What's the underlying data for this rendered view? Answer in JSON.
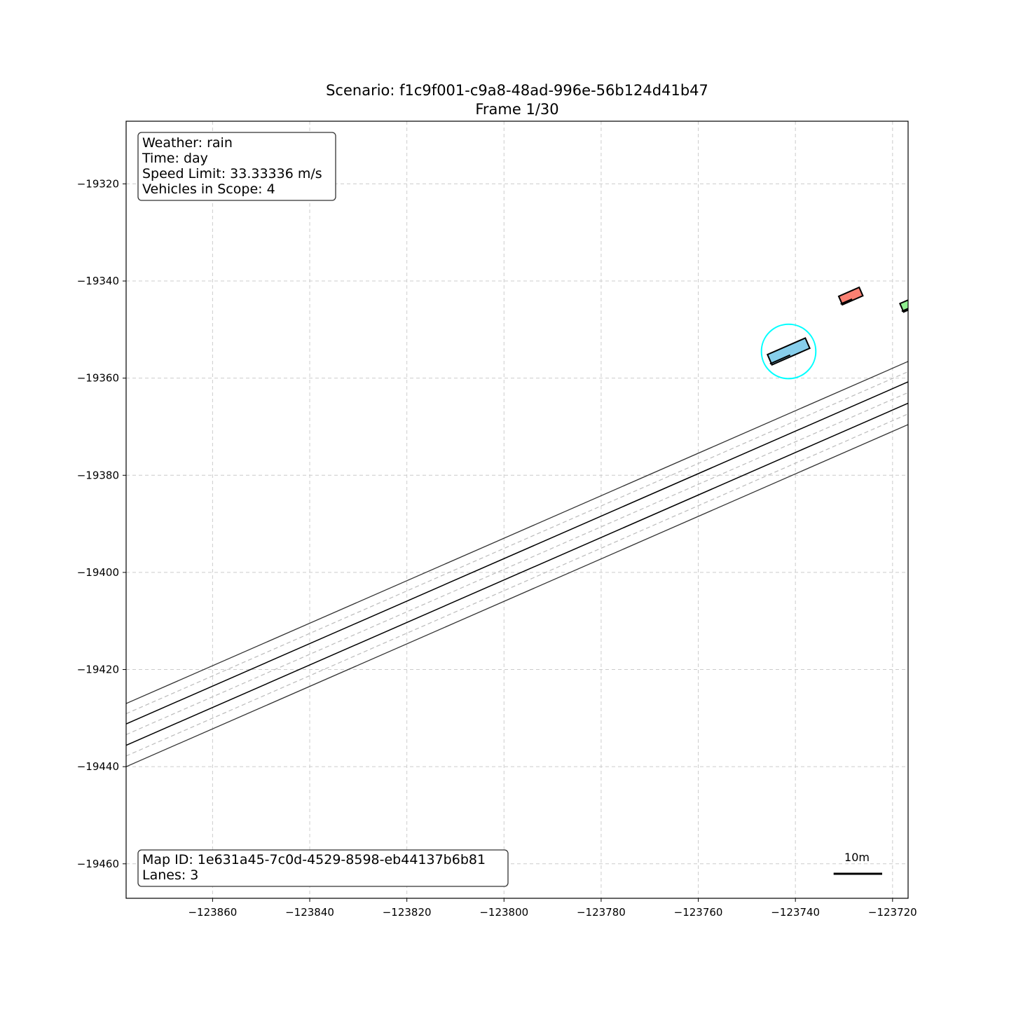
{
  "title": {
    "line1": "Scenario: f1c9f001-c9a8-48ad-996e-56b124d41b47",
    "line2": "Frame 1/30"
  },
  "info_box": {
    "weather": "Weather: rain",
    "time": "Time: day",
    "speed_limit": "Speed Limit: 33.33336 m/s",
    "vehicles": "Vehicles in Scope: 4"
  },
  "map_box": {
    "map_id": "Map ID: 1e631a45-7c0d-4529-8598-eb44137b6b81",
    "lanes": "Lanes: 3"
  },
  "scale_bar": {
    "label": "10m",
    "length_m": 10
  },
  "axes": {
    "x_ticks": [
      -123860,
      -123840,
      -123820,
      -123800,
      -123780,
      -123760,
      -123740,
      -123720
    ],
    "y_ticks": [
      -19320,
      -19340,
      -19360,
      -19380,
      -19400,
      -19420,
      -19440,
      -19460
    ],
    "x_tick_labels": [
      "−123860",
      "−123840",
      "−123820",
      "−123800",
      "−123780",
      "−123760",
      "−123740",
      "−123720"
    ],
    "y_tick_labels": [
      "−19320",
      "−19340",
      "−19360",
      "−19380",
      "−19400",
      "−19420",
      "−19440",
      "−19460"
    ],
    "xlim": [
      -123877.8,
      -123716.8
    ],
    "ylim": [
      -19467.1,
      -19307.1
    ],
    "grid": true
  },
  "road": {
    "slope": 0.4375,
    "edges": [
      {
        "kind": "edge",
        "y_at_xmin": -19427.0
      },
      {
        "kind": "edge",
        "y_at_xmin": -19440.0
      }
    ],
    "solid_dividers": [
      {
        "kind": "solid",
        "y_at_xmin": -19431.2
      },
      {
        "kind": "solid",
        "y_at_xmin": -19435.6
      }
    ],
    "dashed_lines": [
      {
        "kind": "dashed",
        "y_at_xmin": -19429.1
      },
      {
        "kind": "dashed",
        "y_at_xmin": -19433.4
      },
      {
        "kind": "dashed",
        "y_at_xmin": -19437.8
      }
    ]
  },
  "vehicles": [
    {
      "role": "ego",
      "x": -123741.4,
      "y": -19354.5,
      "length": 8.5,
      "width": 2.3,
      "fill": "#87ceeb",
      "stroke": "#000000"
    },
    {
      "role": "other",
      "x": -123728.6,
      "y": -19343.1,
      "length": 4.6,
      "width": 1.9,
      "fill": "#fa8072",
      "stroke": "#000000"
    },
    {
      "role": "other",
      "x": -123716.0,
      "y": -19344.6,
      "length": 4.6,
      "width": 1.9,
      "fill": "#90ee90",
      "stroke": "#000000"
    }
  ],
  "ego_circle": {
    "x": -123741.4,
    "y": -19354.5,
    "radius": 5.6,
    "color": "#00ffff"
  },
  "colors": {
    "edge": "#333333",
    "solid": "#000000",
    "dashed": "#bbbbbb",
    "grid": "#cccccc"
  }
}
